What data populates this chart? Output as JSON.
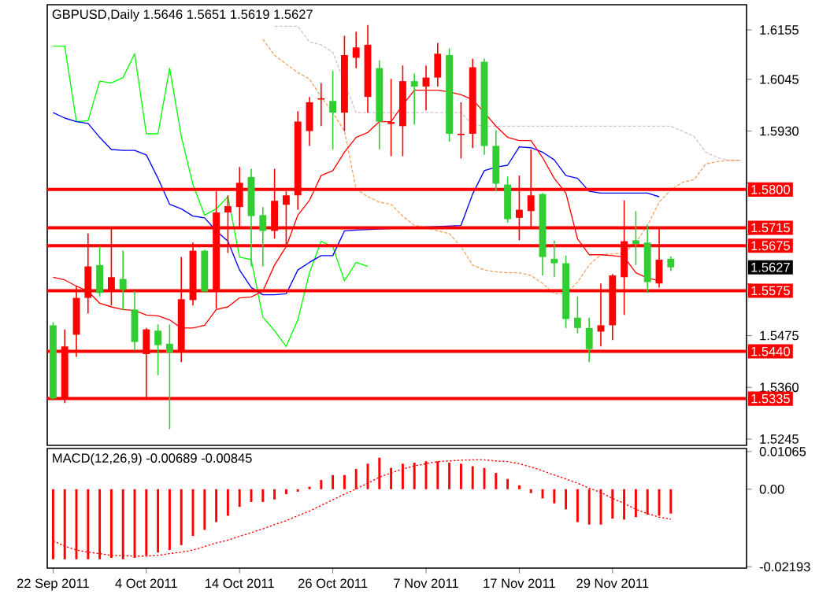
{
  "chart_data": [
    {
      "type": "candlestick",
      "title": "GBPUSD,Daily 1.5646 1.5651 1.5619 1.5627",
      "categories": [
        null,
        null,
        null,
        null,
        null,
        null,
        null,
        null,
        null,
        null,
        null,
        null,
        null,
        null,
        null,
        null,
        null,
        null,
        null,
        null,
        null,
        null,
        null,
        null,
        null,
        null,
        null,
        null,
        null,
        null,
        null,
        null,
        null,
        null,
        null,
        null,
        null,
        null,
        null,
        null,
        null,
        null,
        null,
        null,
        null,
        null,
        null,
        null,
        null,
        null,
        null,
        null,
        null,
        null,
        null,
        null,
        null,
        null,
        null,
        null
      ],
      "ohlc": [
        [
          1.5498,
          1.5505,
          1.533,
          1.5335
        ],
        [
          1.5335,
          1.5489,
          1.5325,
          1.5451
        ],
        [
          1.5477,
          1.5585,
          1.5428,
          1.5559
        ],
        [
          1.5559,
          1.5702,
          1.5524,
          1.5629
        ],
        [
          1.5632,
          1.5673,
          1.5562,
          1.557
        ],
        [
          1.5576,
          1.5714,
          1.5542,
          1.5605
        ],
        [
          1.5601,
          1.5664,
          1.5531,
          1.5577
        ],
        [
          1.5533,
          1.5574,
          1.5442,
          1.5461
        ],
        [
          1.5434,
          1.5492,
          1.5337,
          1.5489
        ],
        [
          1.5486,
          1.55,
          1.5387,
          1.5454
        ],
        [
          1.5457,
          1.55,
          1.5267,
          1.5437
        ],
        [
          1.5442,
          1.565,
          1.5416,
          1.5556
        ],
        [
          1.5554,
          1.5682,
          1.5542,
          1.5664
        ],
        [
          1.5664,
          1.5666,
          1.5571,
          1.5573
        ],
        [
          1.5574,
          1.5796,
          1.5535,
          1.5749
        ],
        [
          1.5749,
          1.5787,
          1.5659,
          1.5763
        ],
        [
          1.5761,
          1.585,
          1.5717,
          1.5815
        ],
        [
          1.5828,
          1.5846,
          1.5629,
          1.5741
        ],
        [
          1.5743,
          1.5761,
          1.5629,
          1.5708
        ],
        [
          1.5708,
          1.5846,
          1.5691,
          1.5775
        ],
        [
          1.5766,
          1.5796,
          1.5679,
          1.5787
        ],
        [
          1.5787,
          1.5974,
          1.5755,
          1.5951
        ],
        [
          1.593,
          1.6006,
          1.5897,
          1.5994
        ],
        [
          1.6,
          1.6037,
          1.5941,
          1.6003
        ],
        [
          1.5997,
          1.6064,
          1.5889,
          1.5971
        ],
        [
          1.5971,
          1.6142,
          1.593,
          1.6099
        ],
        [
          1.6093,
          1.6151,
          1.607,
          1.6116
        ],
        [
          1.6006,
          1.6166,
          1.5971,
          1.6122
        ],
        [
          1.607,
          1.6087,
          1.5889,
          1.5951
        ],
        [
          1.5946,
          1.6046,
          1.5874,
          1.595
        ],
        [
          1.5941,
          1.6076,
          1.5874,
          1.6041
        ],
        [
          1.6041,
          1.6058,
          1.5944,
          1.6029
        ],
        [
          1.6029,
          1.6076,
          1.5976,
          1.6049
        ],
        [
          1.6049,
          1.6126,
          1.6029,
          1.6102
        ],
        [
          1.6099,
          1.6114,
          1.5906,
          1.5924
        ],
        [
          1.5921,
          1.5994,
          1.5869,
          1.5924
        ],
        [
          1.5924,
          1.6091,
          1.5892,
          1.6072
        ],
        [
          1.6084,
          1.6091,
          1.5877,
          1.5897
        ],
        [
          1.5897,
          1.5932,
          1.5796,
          1.5813
        ],
        [
          1.5811,
          1.5829,
          1.5726,
          1.5734
        ],
        [
          1.5737,
          1.5831,
          1.5687,
          1.5755
        ],
        [
          1.5752,
          1.5889,
          1.5717,
          1.5787
        ],
        [
          1.579,
          1.5792,
          1.5609,
          1.565
        ],
        [
          1.5646,
          1.5687,
          1.5605,
          1.5636
        ],
        [
          1.5636,
          1.5653,
          1.5492,
          1.5512
        ],
        [
          1.5515,
          1.5562,
          1.548,
          1.5492
        ],
        [
          1.5492,
          1.5515,
          1.5416,
          1.5445
        ],
        [
          1.5484,
          1.5591,
          1.5451,
          1.5498
        ],
        [
          1.5498,
          1.5612,
          1.5465,
          1.5609
        ],
        [
          1.5605,
          1.5776,
          1.5521,
          1.5685
        ],
        [
          1.5687,
          1.5752,
          1.5632,
          1.5679
        ],
        [
          1.5682,
          1.5722,
          1.557,
          1.5594
        ],
        [
          1.5591,
          1.5714,
          1.5582,
          1.5644
        ],
        [
          1.5646,
          1.5651,
          1.5619,
          1.5627
        ],
        null,
        null,
        null,
        null,
        null,
        null
      ],
      "colors": [
        "#32cd32",
        "#ff0000",
        "#ff0000",
        "#ff0000",
        "#32cd32",
        "#ff0000",
        "#32cd32",
        "#32cd32",
        "#ff0000",
        "#32cd32",
        "#32cd32",
        "#ff0000",
        "#ff0000",
        "#32cd32",
        "#ff0000",
        "#ff0000",
        "#ff0000",
        "#32cd32",
        "#32cd32",
        "#ff0000",
        "#ff0000",
        "#ff0000",
        "#ff0000",
        "#ff0000",
        "#32cd32",
        "#ff0000",
        "#ff0000",
        "#ff0000",
        "#32cd32",
        "#ff0000",
        "#ff0000",
        "#32cd32",
        "#ff0000",
        "#ff0000",
        "#32cd32",
        "#ff0000",
        "#ff0000",
        "#32cd32",
        "#32cd32",
        "#32cd32",
        "#ff0000",
        "#ff0000",
        "#32cd32",
        "#32cd32",
        "#32cd32",
        "#32cd32",
        "#32cd32",
        "#ff0000",
        "#ff0000",
        "#ff0000",
        "#32cd32",
        "#32cd32",
        "#ff0000",
        "#32cd32",
        null,
        null,
        null,
        null,
        null,
        null
      ],
      "series": [
        {
          "type": "line",
          "color": "#d8bfd8",
          "line_style": "dashed",
          "values": [
            null,
            null,
            null,
            null,
            null,
            null,
            null,
            null,
            null,
            null,
            null,
            null,
            null,
            null,
            null,
            null,
            null,
            null,
            null,
            1.6163,
            1.6163,
            1.6163,
            1.6128,
            1.6122,
            1.6105,
            null,
            1.5971,
            1.5971,
            1.5971,
            1.5971,
            1.5971,
            1.5971,
            1.5971,
            1.5971,
            1.5971,
            1.5971,
            1.5944,
            1.5941,
            1.5941,
            1.5941,
            1.5941,
            1.5941,
            1.5941,
            1.5941,
            1.5941,
            1.5941,
            1.5941,
            1.5941,
            1.5941,
            1.5941,
            1.5941,
            1.5941,
            1.5941,
            1.5941,
            1.593,
            1.5918,
            1.5883,
            1.5871,
            1.5865,
            1.5865
          ]
        },
        {
          "type": "line",
          "color": "#f4a460",
          "line_style": "dashed",
          "values": [
            null,
            null,
            null,
            null,
            null,
            null,
            null,
            null,
            null,
            null,
            null,
            null,
            null,
            null,
            null,
            null,
            null,
            null,
            1.6134,
            1.6099,
            1.6079,
            1.606,
            1.6046,
            1.6006,
            1.5971,
            1.593,
            1.5801,
            1.5784,
            1.5772,
            1.5767,
            1.5741,
            1.572,
            1.5715,
            1.5708,
            1.5702,
            1.5673,
            1.5632,
            1.5621,
            1.5617,
            1.5615,
            1.5615,
            1.5609,
            1.5591,
            1.5568,
            1.5568,
            1.5594,
            1.5632,
            1.5655,
            1.5657,
            1.5659,
            1.5682,
            1.572,
            1.5772,
            1.5799,
            1.5816,
            1.5822,
            1.5857,
            1.5862,
            1.5865,
            1.5865
          ]
        },
        {
          "type": "line",
          "color": "#00ff00",
          "line_style": "solid",
          "values": [
            1.6119,
            1.6119,
            1.5951,
            1.5953,
            1.6041,
            1.6037,
            1.6049,
            1.6102,
            1.5924,
            1.5924,
            1.607,
            1.5918,
            1.5811,
            1.5743,
            1.5757,
            1.5784,
            1.565,
            1.5644,
            1.5516,
            1.5486,
            1.5451,
            1.551,
            1.5615,
            1.5685,
            1.5673,
            1.5597,
            1.5638,
            1.5629,
            null,
            null,
            null,
            null,
            null,
            null,
            null,
            null,
            null,
            null,
            null,
            null,
            null,
            null,
            null,
            null,
            null,
            null,
            null,
            null,
            null,
            null,
            null,
            null,
            null,
            null,
            null,
            null,
            null,
            null,
            null,
            null
          ]
        },
        {
          "type": "line",
          "color": "#0000ff",
          "line_style": "solid",
          "values": [
            1.5971,
            1.5959,
            1.5951,
            1.5947,
            1.5916,
            1.5889,
            1.5887,
            1.5887,
            1.5877,
            1.5825,
            1.5767,
            1.5757,
            1.5741,
            1.5737,
            1.5708,
            1.5685,
            1.5621,
            1.5582,
            1.5566,
            1.5566,
            1.5568,
            1.5621,
            1.5638,
            1.5653,
            1.5653,
            1.5708,
            1.571,
            null,
            null,
            null,
            null,
            null,
            null,
            null,
            null,
            1.572,
            1.579,
            1.5842,
            1.585,
            1.5854,
            1.5895,
            1.5893,
            1.5883,
            1.5866,
            1.5831,
            1.5825,
            1.5796,
            1.5792,
            1.5792,
            1.5792,
            1.5792,
            1.5792,
            1.5784,
            null,
            null,
            null,
            null,
            null,
            null,
            null
          ]
        },
        {
          "type": "line",
          "color": "#ff0000",
          "line_style": "solid",
          "values": [
            1.5605,
            1.5599,
            1.5585,
            1.5574,
            1.5547,
            1.5539,
            1.5533,
            1.5531,
            1.5521,
            1.5519,
            1.551,
            1.5492,
            1.5492,
            1.5498,
            1.5533,
            1.5539,
            1.5559,
            1.5561,
            1.5574,
            1.5632,
            1.5673,
            1.5743,
            1.5776,
            1.5831,
            1.5842,
            1.5883,
            1.5916,
            1.5927,
            1.5951,
            1.5951,
            1.5988,
            1.6021,
            1.6021,
            1.6021,
            1.6017,
            1.6011,
            1.6,
            1.5971,
            1.5941,
            1.5916,
            1.5909,
            1.5909,
            1.5871,
            1.5825,
            1.5792,
            1.569,
            1.5655,
            1.5655,
            1.5653,
            1.565,
            1.5615,
            1.5603,
            1.5597,
            null,
            null,
            null,
            null,
            null,
            null,
            null
          ]
        }
      ],
      "ylim": [
        1.5231,
        1.6211
      ],
      "yticks": [
        1.6155,
        1.6045,
        {
          "value": 1.593,
          "label": "1.5930"
        },
        {
          "value": 1.5815,
          "label": null
        },
        {
          "value": 1.57,
          "label": null
        },
        {
          "value": 1.559,
          "label": null
        },
        1.5475,
        {
          "value": 1.536,
          "label": "1.5360"
        },
        1.5245
      ],
      "tick_labels": "y",
      "ref_lines": [
        {
          "axis": "y",
          "value": 1.58,
          "label": "1.5800",
          "color": "#ff0000"
        },
        {
          "axis": "y",
          "value": 1.5715,
          "label": "1.5715",
          "color": "#ff0000"
        },
        {
          "axis": "y",
          "value": 1.5675,
          "label": "1.5675",
          "color": "#ff0000"
        },
        {
          "axis": "y",
          "value": 1.5575,
          "label": "1.5575",
          "color": "#ff0000"
        },
        {
          "axis": "y",
          "value": 1.544,
          "label": "1.5440",
          "color": "#ff0000"
        },
        {
          "axis": "y",
          "value": 1.5335,
          "label": "1.5335",
          "color": "#ff0000"
        }
      ],
      "annotations": [
        {
          "text": "1.5627",
          "y": 1.5627
        }
      ]
    },
    {
      "type": "bar",
      "title": "MACD(12,26,9) -0.00689 -0.00845",
      "categories": [
        "22 Sep 2011",
        null,
        null,
        null,
        null,
        null,
        null,
        null,
        "4 Oct 2011",
        null,
        null,
        null,
        null,
        null,
        null,
        null,
        "14 Oct 2011",
        null,
        null,
        null,
        null,
        null,
        null,
        null,
        "26 Oct 2011",
        null,
        null,
        null,
        null,
        null,
        null,
        null,
        "7 Nov 2011",
        null,
        null,
        null,
        null,
        null,
        null,
        null,
        "17 Nov 2011",
        null,
        null,
        null,
        null,
        null,
        null,
        null,
        "29 Nov 2011",
        null,
        null,
        null,
        null,
        null,
        null,
        null,
        null,
        null,
        null,
        null
      ],
      "series": [
        {
          "type": "bar",
          "color": "#ff0000",
          "values": [
            -0.0198,
            -0.0198,
            -0.0198,
            -0.0198,
            -0.0198,
            -0.0194,
            -0.0198,
            -0.0194,
            -0.0187,
            -0.0179,
            -0.0172,
            -0.0158,
            -0.0132,
            -0.0115,
            -0.0093,
            -0.0075,
            -0.005,
            -0.0036,
            -0.0036,
            -0.0029,
            -0.0014,
            -0.0007,
            0.0007,
            0.0026,
            0.004,
            0.004,
            0.0057,
            0.0072,
            0.0089,
            0.006,
            0.0072,
            0.0075,
            0.0079,
            0.0079,
            0.0075,
            0.0072,
            0.0065,
            0.006,
            0.0046,
            0.0029,
            0.0011,
            -0.0011,
            -0.0026,
            -0.004,
            -0.0057,
            -0.0093,
            -0.01,
            -0.01,
            -0.0083,
            -0.0086,
            -0.0079,
            -0.0072,
            -0.0075,
            -0.00689,
            null,
            null,
            null,
            null,
            null,
            null
          ]
        },
        {
          "type": "line",
          "color": "#ff0000",
          "line_style": "dotted",
          "values": [
            -0.0146,
            -0.0161,
            -0.0172,
            -0.0178,
            -0.0182,
            -0.0187,
            -0.0188,
            -0.0189,
            -0.0189,
            -0.0187,
            -0.0182,
            -0.0178,
            -0.0172,
            -0.0162,
            -0.0152,
            -0.0144,
            -0.0133,
            -0.0123,
            -0.0112,
            -0.01,
            -0.0089,
            -0.0075,
            -0.0062,
            -0.0046,
            -0.003,
            -0.0014,
            0.0001,
            0.0017,
            0.0034,
            0.0046,
            0.0057,
            0.0066,
            0.0072,
            0.0078,
            0.008,
            0.0082,
            0.0083,
            0.0083,
            0.008,
            0.0078,
            0.0072,
            0.0063,
            0.0052,
            0.004,
            0.0029,
            0.0017,
            0.0003,
            -0.0009,
            -0.0026,
            -0.004,
            -0.0057,
            -0.0069,
            -0.0079,
            -0.00845,
            null,
            null,
            null,
            null,
            null,
            null
          ]
        }
      ],
      "ylim": [
        -0.0223,
        0.0115
      ],
      "yticks": [
        0.01065,
        {
          "value": 0,
          "label": "0.00"
        },
        -0.02193
      ]
    }
  ]
}
